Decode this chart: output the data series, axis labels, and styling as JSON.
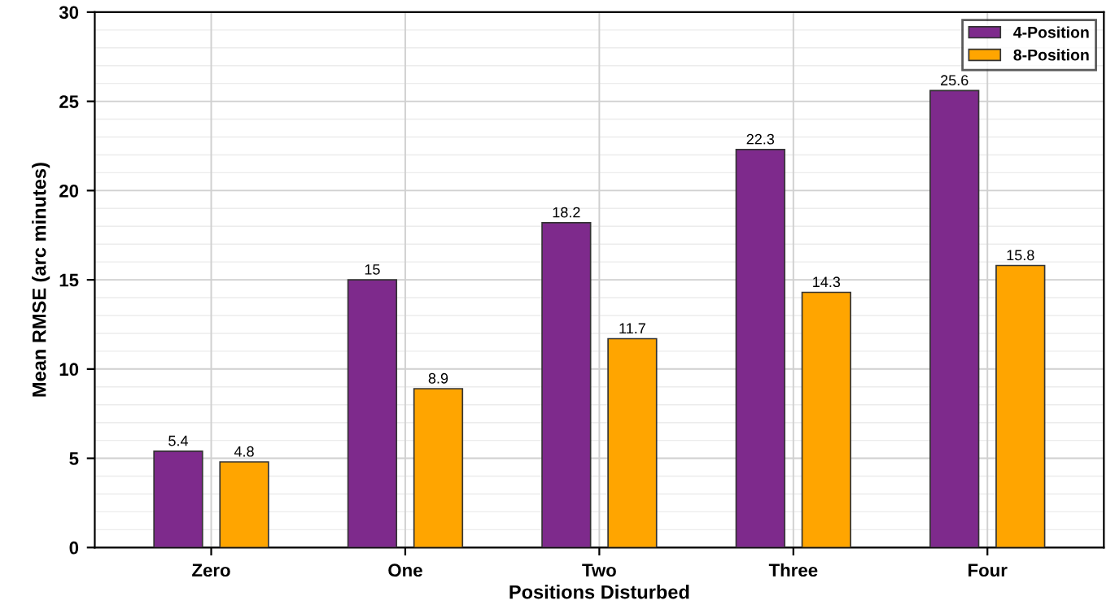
{
  "chart_data": {
    "type": "bar",
    "xlabel": "Positions Disturbed",
    "ylabel": "Mean RMSE (arc minutes)",
    "categories": [
      "Zero",
      "One",
      "Two",
      "Three",
      "Four"
    ],
    "series": [
      {
        "name": "4-Position",
        "color": "#7e2a8c",
        "values": [
          5.4,
          15,
          18.2,
          22.3,
          25.6
        ]
      },
      {
        "name": "8-Position",
        "color": "#ffa500",
        "values": [
          4.8,
          8.9,
          11.7,
          14.3,
          15.8
        ]
      }
    ],
    "ylim": [
      0,
      30
    ],
    "yticks": [
      0,
      5,
      10,
      15,
      20,
      25,
      30
    ],
    "grid": true,
    "legend": "top right",
    "data_labels": true
  }
}
